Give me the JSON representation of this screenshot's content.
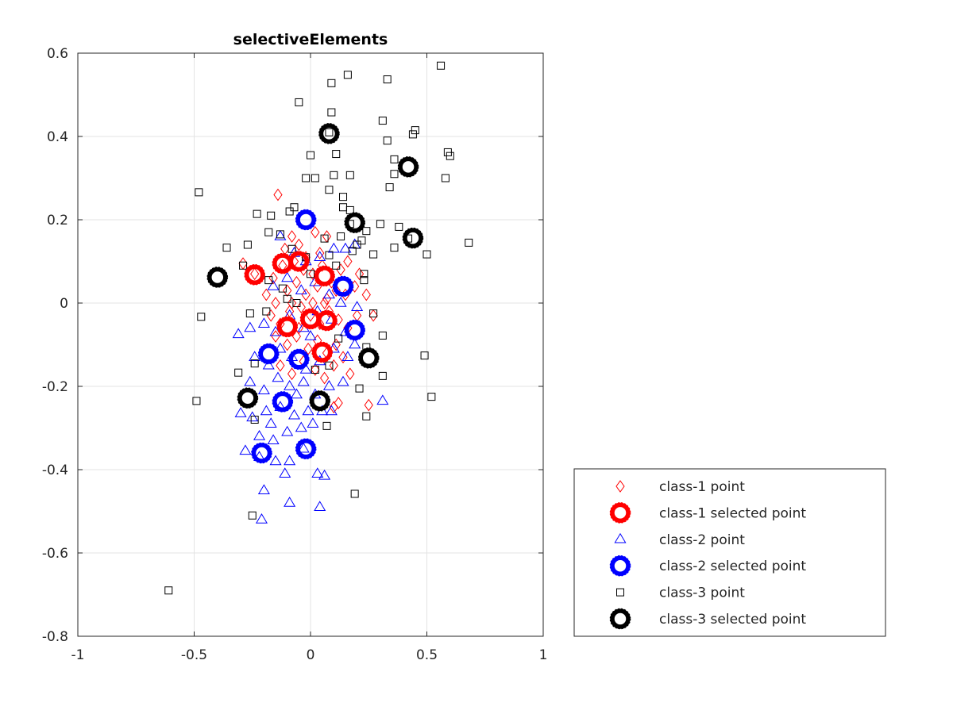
{
  "chart_data": {
    "type": "scatter",
    "title": "selectiveElements",
    "xlabel": "",
    "ylabel": "",
    "xlim": [
      -1,
      1
    ],
    "ylim": [
      -0.8,
      0.6
    ],
    "xticks": [
      "-1",
      "-0.5",
      "0",
      "0.5",
      "1"
    ],
    "yticks": [
      "-0.8",
      "-0.6",
      "-0.4",
      "-0.2",
      "0",
      "0.2",
      "0.4",
      "0.6"
    ],
    "grid": true,
    "legend_position": "outside-right-bottom",
    "series": [
      {
        "name": "class-1 point",
        "marker": "diamond",
        "color": "#ff0000",
        "points": [
          [
            -0.14,
            0.26
          ],
          [
            -0.29,
            0.095
          ],
          [
            -0.24,
            0.07
          ],
          [
            -0.11,
            0.13
          ],
          [
            -0.08,
            0.16
          ],
          [
            -0.05,
            0.14
          ],
          [
            0.02,
            0.17
          ],
          [
            0.07,
            0.16
          ],
          [
            -0.12,
            0.09
          ],
          [
            -0.07,
            0.1
          ],
          [
            -0.03,
            0.08
          ],
          [
            0.01,
            0.07
          ],
          [
            0.05,
            0.09
          ],
          [
            0.09,
            0.05
          ],
          [
            0.13,
            0.08
          ],
          [
            0.16,
            0.1
          ],
          [
            -0.19,
            0.02
          ],
          [
            -0.15,
            0.0
          ],
          [
            -0.1,
            0.03
          ],
          [
            -0.06,
            0.05
          ],
          [
            -0.02,
            0.02
          ],
          [
            0.03,
            0.04
          ],
          [
            0.07,
            0.01
          ],
          [
            0.11,
            0.03
          ],
          [
            0.15,
            0.02
          ],
          [
            0.19,
            0.04
          ],
          [
            0.24,
            0.02
          ],
          [
            -0.17,
            -0.03
          ],
          [
            -0.13,
            -0.05
          ],
          [
            -0.09,
            -0.02
          ],
          [
            -0.05,
            -0.06
          ],
          [
            0.0,
            -0.03
          ],
          [
            0.04,
            -0.05
          ],
          [
            0.08,
            -0.02
          ],
          [
            0.12,
            -0.04
          ],
          [
            0.16,
            -0.06
          ],
          [
            0.2,
            -0.03
          ],
          [
            0.27,
            -0.03
          ],
          [
            -0.15,
            -0.08
          ],
          [
            -0.1,
            -0.1
          ],
          [
            -0.06,
            -0.08
          ],
          [
            -0.01,
            -0.11
          ],
          [
            0.03,
            -0.09
          ],
          [
            0.07,
            -0.12
          ],
          [
            0.11,
            -0.1
          ],
          [
            0.14,
            -0.13
          ],
          [
            -0.13,
            -0.15
          ],
          [
            -0.08,
            -0.17
          ],
          [
            -0.03,
            -0.14
          ],
          [
            0.02,
            -0.16
          ],
          [
            0.06,
            -0.18
          ],
          [
            0.1,
            -0.15
          ],
          [
            0.17,
            -0.17
          ],
          [
            0.12,
            -0.24
          ],
          [
            0.1,
            -0.25
          ],
          [
            0.25,
            -0.245
          ],
          [
            -0.08,
            0.0
          ],
          [
            -0.04,
            -0.01
          ],
          [
            0.01,
            0.0
          ],
          [
            0.06,
            0.0
          ],
          [
            -0.02,
            0.11
          ],
          [
            0.04,
            0.12
          ],
          [
            -0.16,
            0.06
          ],
          [
            0.21,
            0.07
          ]
        ]
      },
      {
        "name": "class-1 selected point",
        "marker": "circle-bold",
        "color": "#ff0000",
        "points": [
          [
            -0.24,
            0.068
          ],
          [
            -0.12,
            0.095
          ],
          [
            -0.05,
            0.1
          ],
          [
            0.06,
            0.065
          ],
          [
            -0.1,
            -0.057
          ],
          [
            0.0,
            -0.038
          ],
          [
            0.07,
            -0.042
          ],
          [
            0.05,
            -0.118
          ]
        ]
      },
      {
        "name": "class-2 point",
        "marker": "triangle",
        "color": "#0000ff",
        "points": [
          [
            -0.13,
            0.16
          ],
          [
            -0.07,
            0.12
          ],
          [
            -0.02,
            0.1
          ],
          [
            0.04,
            0.11
          ],
          [
            0.1,
            0.13
          ],
          [
            0.15,
            0.13
          ],
          [
            0.19,
            0.14
          ],
          [
            -0.16,
            0.04
          ],
          [
            -0.1,
            0.06
          ],
          [
            -0.04,
            0.03
          ],
          [
            0.02,
            0.05
          ],
          [
            0.08,
            0.02
          ],
          [
            0.13,
            0.0
          ],
          [
            0.2,
            -0.01
          ],
          [
            -0.31,
            -0.075
          ],
          [
            -0.26,
            -0.06
          ],
          [
            -0.2,
            -0.05
          ],
          [
            -0.15,
            -0.07
          ],
          [
            -0.09,
            -0.03
          ],
          [
            -0.03,
            -0.06
          ],
          [
            0.03,
            -0.02
          ],
          [
            0.09,
            -0.04
          ],
          [
            0.15,
            -0.07
          ],
          [
            -0.24,
            -0.13
          ],
          [
            -0.18,
            -0.15
          ],
          [
            -0.13,
            -0.11
          ],
          [
            -0.08,
            -0.13
          ],
          [
            -0.02,
            -0.16
          ],
          [
            0.04,
            -0.14
          ],
          [
            0.1,
            -0.11
          ],
          [
            0.16,
            -0.13
          ],
          [
            0.19,
            -0.1
          ],
          [
            -0.26,
            -0.19
          ],
          [
            -0.2,
            -0.21
          ],
          [
            -0.14,
            -0.18
          ],
          [
            -0.09,
            -0.2
          ],
          [
            -0.03,
            -0.19
          ],
          [
            0.02,
            -0.22
          ],
          [
            0.08,
            -0.2
          ],
          [
            0.14,
            -0.19
          ],
          [
            0.31,
            -0.235
          ],
          [
            -0.3,
            -0.265
          ],
          [
            -0.25,
            -0.275
          ],
          [
            -0.19,
            -0.26
          ],
          [
            -0.13,
            -0.25
          ],
          [
            -0.07,
            -0.27
          ],
          [
            -0.01,
            -0.26
          ],
          [
            0.05,
            -0.26
          ],
          [
            0.09,
            -0.26
          ],
          [
            -0.28,
            -0.355
          ],
          [
            -0.22,
            -0.32
          ],
          [
            -0.16,
            -0.33
          ],
          [
            -0.1,
            -0.31
          ],
          [
            -0.04,
            -0.3
          ],
          [
            0.01,
            -0.29
          ],
          [
            -0.15,
            -0.38
          ],
          [
            -0.09,
            -0.38
          ],
          [
            -0.03,
            -0.35
          ],
          [
            -0.11,
            -0.41
          ],
          [
            0.03,
            -0.41
          ],
          [
            0.06,
            -0.415
          ],
          [
            -0.2,
            -0.45
          ],
          [
            -0.09,
            -0.48
          ],
          [
            0.04,
            -0.49
          ],
          [
            -0.21,
            -0.52
          ],
          [
            -0.22,
            -0.37
          ],
          [
            -0.17,
            -0.29
          ],
          [
            -0.06,
            -0.22
          ],
          [
            0.0,
            -0.08
          ]
        ]
      },
      {
        "name": "class-2 selected point",
        "marker": "circle-bold",
        "color": "#0000ff",
        "points": [
          [
            -0.02,
            0.2
          ],
          [
            0.14,
            0.04
          ],
          [
            0.19,
            -0.065
          ],
          [
            -0.18,
            -0.122
          ],
          [
            -0.05,
            -0.135
          ],
          [
            -0.12,
            -0.237
          ],
          [
            -0.21,
            -0.36
          ],
          [
            -0.02,
            -0.35
          ]
        ]
      },
      {
        "name": "class-3 point",
        "marker": "square",
        "color": "#000000",
        "points": [
          [
            0.56,
            0.57
          ],
          [
            0.33,
            0.537
          ],
          [
            0.16,
            0.548
          ],
          [
            0.09,
            0.528
          ],
          [
            -0.05,
            0.482
          ],
          [
            0.09,
            0.458
          ],
          [
            0.31,
            0.438
          ],
          [
            0.45,
            0.415
          ],
          [
            0.33,
            0.39
          ],
          [
            0.44,
            0.405
          ],
          [
            0.59,
            0.362
          ],
          [
            0.6,
            0.353
          ],
          [
            0.36,
            0.345
          ],
          [
            0.0,
            0.355
          ],
          [
            0.11,
            0.358
          ],
          [
            0.36,
            0.31
          ],
          [
            0.58,
            0.3
          ],
          [
            0.68,
            0.145
          ],
          [
            -0.48,
            0.266
          ],
          [
            -0.02,
            0.3
          ],
          [
            0.02,
            0.3
          ],
          [
            0.1,
            0.307
          ],
          [
            0.17,
            0.307
          ],
          [
            0.34,
            0.278
          ],
          [
            0.08,
            0.272
          ],
          [
            0.14,
            0.255
          ],
          [
            -0.23,
            0.214
          ],
          [
            -0.17,
            0.21
          ],
          [
            -0.07,
            0.23
          ],
          [
            -0.09,
            0.22
          ],
          [
            0.17,
            0.223
          ],
          [
            0.14,
            0.23
          ],
          [
            0.3,
            0.19
          ],
          [
            0.38,
            0.183
          ],
          [
            0.42,
            0.155
          ],
          [
            0.5,
            0.117
          ],
          [
            0.24,
            0.173
          ],
          [
            0.13,
            0.16
          ],
          [
            0.06,
            0.155
          ],
          [
            -0.18,
            0.17
          ],
          [
            -0.36,
            0.133
          ],
          [
            -0.27,
            0.14
          ],
          [
            -0.13,
            0.165
          ],
          [
            0.22,
            0.15
          ],
          [
            0.18,
            0.125
          ],
          [
            0.27,
            0.117
          ],
          [
            0.36,
            0.133
          ],
          [
            0.08,
            0.115
          ],
          [
            -0.08,
            0.13
          ],
          [
            -0.02,
            0.11
          ],
          [
            0.23,
            0.07
          ],
          [
            0.23,
            0.055
          ],
          [
            0.11,
            0.09
          ],
          [
            0.0,
            0.07
          ],
          [
            -0.18,
            0.055
          ],
          [
            -0.12,
            0.035
          ],
          [
            -0.1,
            0.01
          ],
          [
            -0.19,
            -0.02
          ],
          [
            -0.26,
            -0.025
          ],
          [
            -0.47,
            -0.033
          ],
          [
            0.27,
            -0.025
          ],
          [
            0.31,
            -0.078
          ],
          [
            0.24,
            -0.106
          ],
          [
            0.12,
            -0.085
          ],
          [
            0.49,
            -0.126
          ],
          [
            0.31,
            -0.175
          ],
          [
            -0.31,
            -0.167
          ],
          [
            -0.24,
            -0.145
          ],
          [
            0.08,
            -0.15
          ],
          [
            0.02,
            -0.16
          ],
          [
            0.21,
            -0.205
          ],
          [
            0.52,
            -0.225
          ],
          [
            -0.49,
            -0.235
          ],
          [
            -0.24,
            -0.28
          ],
          [
            0.07,
            -0.295
          ],
          [
            0.24,
            -0.272
          ],
          [
            0.19,
            -0.458
          ],
          [
            -0.25,
            -0.51
          ],
          [
            -0.61,
            -0.69
          ],
          [
            -0.06,
            0.0
          ],
          [
            0.08,
            0.41
          ],
          [
            0.17,
            0.19
          ],
          [
            0.2,
            0.14
          ],
          [
            -0.29,
            0.09
          ]
        ]
      },
      {
        "name": "class-3 selected point",
        "marker": "circle-bold",
        "color": "#000000",
        "points": [
          [
            0.08,
            0.407
          ],
          [
            0.42,
            0.327
          ],
          [
            0.19,
            0.193
          ],
          [
            0.44,
            0.156
          ],
          [
            -0.4,
            0.062
          ],
          [
            0.25,
            -0.132
          ],
          [
            -0.27,
            -0.228
          ],
          [
            0.04,
            -0.235
          ]
        ]
      }
    ]
  }
}
